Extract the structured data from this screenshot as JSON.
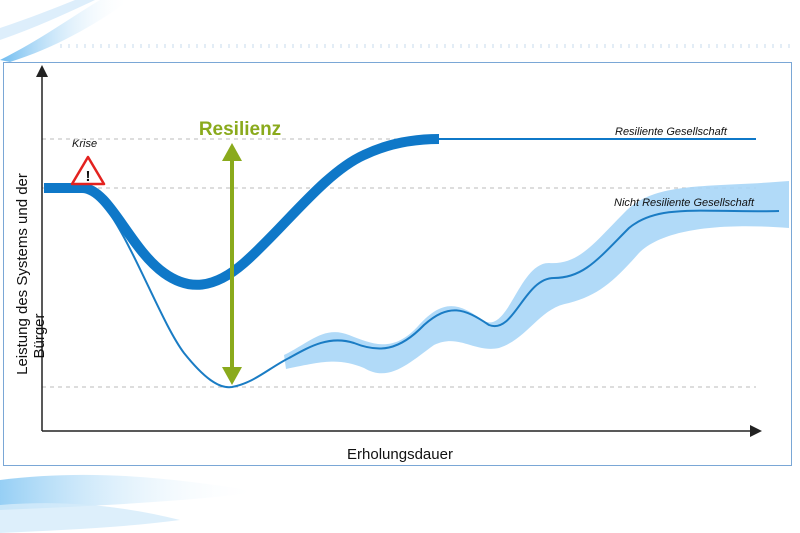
{
  "diagram": {
    "labels": {
      "crisis": "Krise",
      "resilience": "Resilienz",
      "resilient_society": "Resiliente Gesellschaft",
      "non_resilient_society": "Nicht Resiliente Gesellschaft",
      "x_axis": "Erholungsdauer",
      "y_axis_line1": "Leistung des Systems und der",
      "y_axis_line2": "Bürger"
    },
    "warning_glyph": "!",
    "icons": [
      "warning-triangle-icon"
    ],
    "colors": {
      "resilient_curve": "#0f78c8",
      "non_resilient_curve": "#1a7cc4",
      "uncertainty_band": "#a9d6f7",
      "resilience_arrow": "#8aaa1c",
      "frame": "#7aa7d6",
      "warning_red": "#e3221f"
    }
  }
}
